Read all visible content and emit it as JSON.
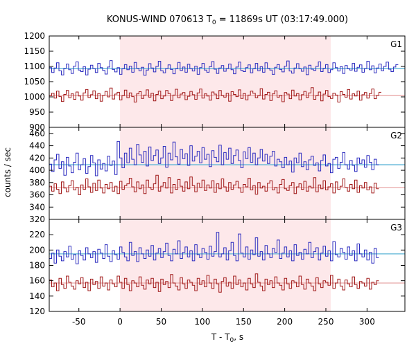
{
  "chart_data": {
    "type": "line",
    "title": {
      "main": "KONUS-WIND 070613 T",
      "sub": "0",
      "rest": " = 11869s UT (03:17:49.000)"
    },
    "xlabel": {
      "main": "T - T",
      "sub": "0",
      "rest": ", s"
    },
    "ylabel": "counts / sec",
    "xlim": [
      -86,
      346
    ],
    "x_ticks": [
      -50,
      0,
      50,
      100,
      150,
      200,
      250,
      300
    ],
    "step_width_s": 2.944,
    "highlight_interval": {
      "x": [
        0,
        256
      ],
      "color": "#fde8ea"
    },
    "colors": {
      "upper_series": "#2b2bbf",
      "lower_series": "#a01818",
      "upper_background": "#5ab4d6",
      "lower_background": "#e8a7a7",
      "axis": "#000000"
    },
    "panels": [
      {
        "name": "G1",
        "ylim": [
          900,
          1200
        ],
        "y_ticks": [
          900,
          950,
          1000,
          1050,
          1100,
          1150,
          1200
        ],
        "series": [
          {
            "role": "upper",
            "mean": 1093,
            "background": 1093,
            "noise": 14,
            "values": [
              1096,
              1080,
              1095,
              1112,
              1086,
              1072,
              1094,
              1108,
              1089,
              1077,
              1101,
              1115,
              1088,
              1083,
              1099,
              1072,
              1091,
              1104,
              1093,
              1080,
              1110,
              1096,
              1087,
              1075,
              1098,
              1119,
              1090,
              1082,
              1096,
              1074,
              1092,
              1106,
              1089,
              1101,
              1081,
              1113,
              1094,
              1086,
              1097,
              1071,
              1088,
              1109,
              1095,
              1082,
              1100,
              1117,
              1086,
              1079,
              1093,
              1105,
              1090,
              1076,
              1092,
              1113,
              1087,
              1098,
              1081,
              1107,
              1093,
              1085,
              1101,
              1074,
              1096,
              1110,
              1088,
              1081,
              1099,
              1116,
              1091,
              1077,
              1095,
              1103,
              1084,
              1093,
              1108,
              1089,
              1076,
              1098,
              1114,
              1087,
              1083,
              1096,
              1105,
              1079,
              1092,
              1110,
              1086,
              1099,
              1081,
              1112,
              1094,
              1088,
              1074,
              1097,
              1106,
              1090,
              1082,
              1101,
              1118,
              1085,
              1078,
              1095,
              1109,
              1092,
              1084,
              1098,
              1073,
              1104,
              1091,
              1087,
              1100,
              1115,
              1083,
              1094,
              1106,
              1080,
              1089,
              1112,
              1096,
              1085,
              1099,
              1077,
              1103,
              1092,
              1088,
              1110,
              1084,
              1097,
              1105,
              1081,
              1093,
              1117,
              1089,
              1102,
              1079,
              1095,
              1108,
              1086,
              1100,
              1114,
              1091,
              1083,
              1098,
              1106
            ]
          },
          {
            "role": "lower",
            "mean": 1005,
            "background": 1005,
            "noise": 14,
            "values": [
              1004,
              1012,
              996,
              1019,
              1001,
              985,
              1008,
              1021,
              997,
              1010,
              992,
              1016,
              1003,
              989,
              1013,
              1024,
              998,
              1007,
              1020,
              994,
              1011,
              986,
              1005,
              1018,
              1000,
              1029,
              993,
              1009,
              1015,
              990,
              1004,
              1022,
              997,
              1013,
              1001,
              983,
              1010,
              1017,
              995,
              1006,
              1023,
              999,
              1012,
              987,
              1008,
              1019,
              994,
              1003,
              1021,
              1011,
              988,
              1006,
              1025,
              997,
              1009,
              1014,
              991,
              1002,
              1018,
              1007,
              992,
              1013,
              1026,
              996,
              1010,
              1003,
              989,
              1016,
              1009,
              994,
              1021,
              1004,
              999,
              1012,
              986,
              1017,
              1008,
              1001,
              1023,
              995,
              1011,
              990,
              1006,
              1019,
              1012,
              997,
              1004,
              1027,
              993,
              1008,
              1015,
              988,
              1010,
              1020,
              999,
              1005,
              984,
              1014,
              1009,
              994,
              1022,
              1003,
              1011,
              990,
              1007,
              1018,
              998,
              1013,
              1030,
              992,
              1004,
              1016,
              987,
              1009,
              1021,
              1001,
              995,
              1012,
              1006,
              983,
              1017,
              1008,
              999,
              1024,
              993,
              1010,
              1003,
              1019,
              989,
              1007,
              1014,
              996,
              1011,
              1026,
              994,
              1005,
              1015
            ]
          }
        ]
      },
      {
        "name": "G2",
        "ylim": [
          320,
          470
        ],
        "y_ticks": [
          320,
          340,
          360,
          380,
          400,
          420,
          440,
          460
        ],
        "series": [
          {
            "role": "upper",
            "mean": 414,
            "background": 409,
            "noise": 10,
            "values": [
              410,
              398,
              417,
              426,
              403,
              414,
              392,
              421,
              407,
              396,
              413,
              428,
              401,
              409,
              419,
              395,
              406,
              424,
              412,
              391,
              417,
              402,
              411,
              399,
              423,
              408,
              415,
              393,
              447,
              420,
              404,
              428,
              412,
              436,
              418,
              409,
              442,
              425,
              413,
              431,
              407,
              438,
              416,
              424,
              433,
              411,
              420,
              439,
              405,
              428,
              417,
              446,
              422,
              410,
              434,
              419,
              427,
              408,
              440,
              415,
              423,
              431,
              412,
              437,
              418,
              426,
              406,
              432,
              421,
              414,
              441,
              409,
              429,
              418,
              436,
              411,
              424,
              433,
              416,
              404,
              430,
              419,
              437,
              413,
              428,
              409,
              420,
              434,
              415,
              426,
              411,
              423,
              431,
              407,
              418,
              414,
              404,
              421,
              409,
              415,
              397,
              420,
              412,
              428,
              406,
              414,
              401,
              417,
              423,
              408,
              412,
              399,
              416,
              425,
              407,
              411,
              396,
              418,
              421,
              403,
              413,
              429,
              409,
              402,
              416,
              408,
              398,
              420,
              411,
              417,
              405,
              424,
              413,
              401,
              418,
              409
            ]
          },
          {
            "role": "lower",
            "mean": 372,
            "background": 372,
            "noise": 9,
            "values": [
              374,
              366,
              378,
              369,
              362,
              381,
              371,
              365,
              375,
              383,
              368,
              372,
              360,
              376,
              369,
              386,
              373,
              364,
              379,
              367,
              384,
              371,
              363,
              377,
              370,
              380,
              366,
              374,
              362,
              382,
              369,
              375,
              378,
              387,
              373,
              365,
              381,
              370,
              376,
              362,
              384,
              372,
              369,
              378,
              392,
              366,
              374,
              380,
              371,
              388,
              363,
              377,
              369,
              385,
              374,
              366,
              381,
              370,
              389,
              375,
              365,
              379,
              372,
              384,
              367,
              376,
              371,
              383,
              364,
              378,
              370,
              386,
              373,
              366,
              380,
              369,
              376,
              382,
              371,
              364,
              377,
              373,
              387,
              368,
              375,
              361,
              380,
              371,
              374,
              366,
              379,
              383,
              368,
              372,
              363,
              377,
              385,
              370,
              367,
              375,
              380,
              362,
              373,
              378,
              369,
              382,
              366,
              374,
              371,
              388,
              365,
              376,
              370,
              383,
              368,
              373,
              378,
              363,
              381,
              369,
              374,
              386,
              372,
              366,
              377,
              370,
              384,
              364,
              375,
              371,
              380,
              368,
              373,
              363,
              379,
              370
            ]
          }
        ]
      },
      {
        "name": "G3",
        "ylim": [
          120,
          240
        ],
        "y_ticks": [
          120,
          140,
          160,
          180,
          200,
          220
        ],
        "series": [
          {
            "role": "upper",
            "mean": 195,
            "background": 195,
            "noise": 8,
            "values": [
              189,
              196,
              183,
              200,
              192,
              186,
              198,
              191,
              205,
              188,
              194,
              182,
              199,
              193,
              187,
              203,
              195,
              190,
              198,
              184,
              201,
              196,
              189,
              207,
              192,
              185,
              199,
              194,
              188,
              204,
              197,
              191,
              186,
              210,
              193,
              198,
              185,
              203,
              195,
              189,
              200,
              192,
              206,
              187,
              196,
              202,
              190,
              198,
              209,
              193,
              186,
              201,
              195,
              212,
              189,
              197,
              204,
              191,
              199,
              186,
              207,
              194,
              190,
              202,
              197,
              188,
              205,
              192,
              198,
              223,
              191,
              195,
              203,
              187,
              199,
              210,
              193,
              186,
              221,
              196,
              191,
              204,
              188,
              200,
              194,
              216,
              192,
              198,
              187,
              206,
              195,
              190,
              202,
              197,
              213,
              189,
              196,
              204,
              191,
              199,
              186,
              207,
              193,
              197,
              188,
              201,
              195,
              210,
              190,
              198,
              203,
              187,
              196,
              205,
              192,
              199,
              186,
              211,
              194,
              191,
              202,
              197,
              188,
              204,
              193,
              199,
              186,
              208,
              195,
              191,
              200,
              187,
              197,
              183,
              202,
              190
            ]
          },
          {
            "role": "lower",
            "mean": 157,
            "background": 157,
            "noise": 6,
            "values": [
              161,
              152,
              157,
              147,
              163,
              155,
              150,
              166,
              158,
              153,
              149,
              160,
              156,
              164,
              151,
              158,
              147,
              162,
              155,
              159,
              150,
              165,
              153,
              157,
              148,
              161,
              156,
              152,
              166,
              158,
              150,
              163,
              155,
              147,
              160,
              157,
              152,
              165,
              154,
              149,
              161,
              156,
              163,
              151,
              158,
              146,
              162,
              155,
              159,
              151,
              168,
              157,
              153,
              148,
              164,
              156,
              150,
              161,
              158,
              154,
              147,
              163,
              155,
              160,
              152,
              167,
              157,
              150,
              162,
              156,
              145,
              159,
              164,
              153,
              158,
              150,
              166,
              155,
              161,
              152,
              157,
              148,
              163,
              156,
              151,
              169,
              158,
              153,
              147,
              162,
              155,
              160,
              151,
              165,
              157,
              154,
              148,
              163,
              156,
              150,
              160,
              158,
              152,
              166,
              155,
              149,
              162,
              157,
              153,
              147,
              164,
              156,
              151,
              160,
              158,
              154,
              167,
              150,
              157,
              162,
              153,
              148,
              161,
              156,
              152,
              165,
              155,
              150,
              159,
              157,
              153,
              163,
              149,
              158,
              155,
              160
            ]
          }
        ]
      }
    ]
  }
}
